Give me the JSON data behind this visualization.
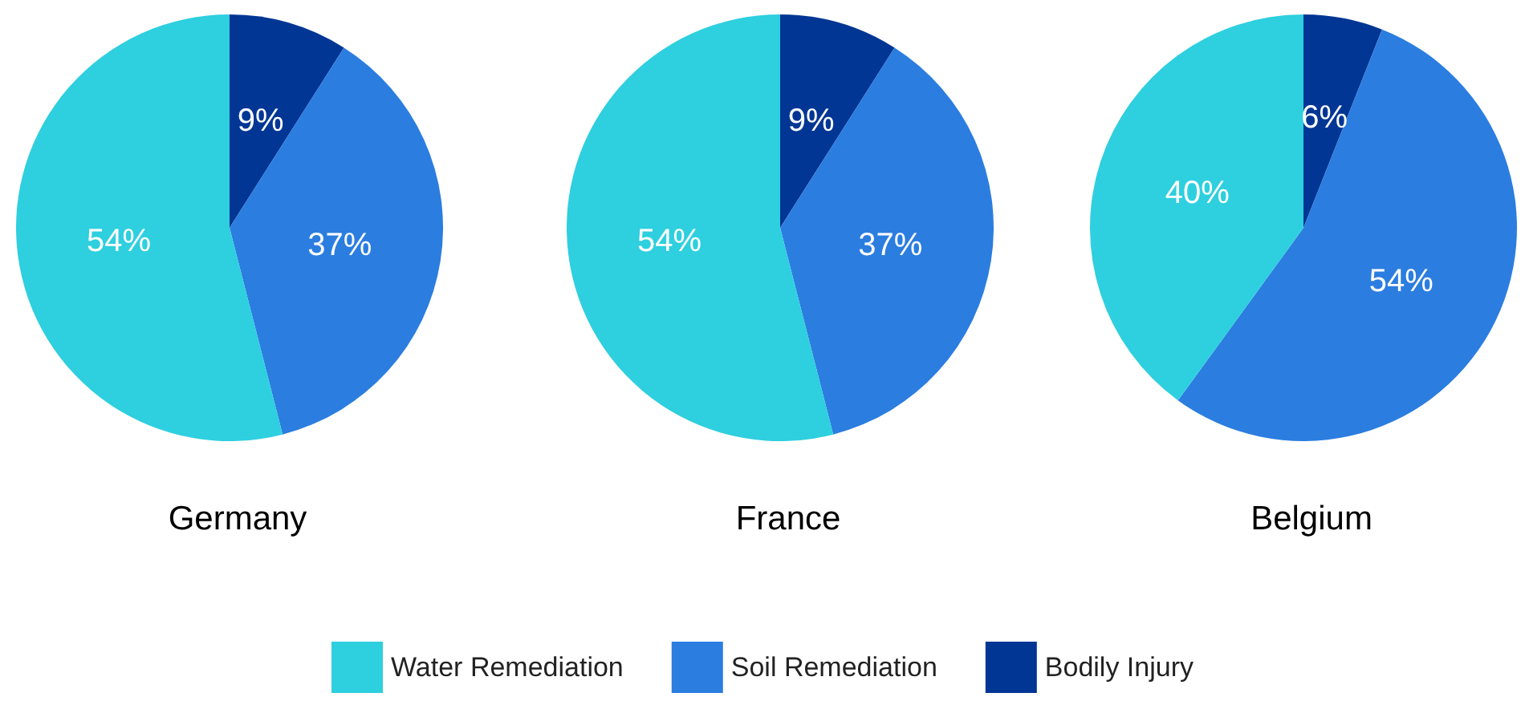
{
  "chart_data": [
    {
      "type": "pie",
      "title": "Germany",
      "categories": [
        "Bodily Injury",
        "Soil Remediation",
        "Water Remediation"
      ],
      "values": [
        9,
        37,
        54
      ],
      "colors": [
        "#023694",
        "#2b7de0",
        "#2ecfdf"
      ],
      "value_labels": [
        "9%",
        "37%",
        "54%"
      ],
      "legend": "bottom"
    },
    {
      "type": "pie",
      "title": "France",
      "categories": [
        null,
        null,
        null
      ],
      "values": [
        9,
        37,
        54
      ],
      "colors": [
        "#023694",
        "#2b7de0",
        "#2ecfdf"
      ],
      "value_labels": [
        "9%",
        "37%",
        "54%"
      ]
    },
    {
      "type": "pie",
      "title": "Belgium",
      "categories": [
        null,
        null,
        null
      ],
      "values": [
        6,
        54,
        40
      ],
      "colors": [
        "#023694",
        "#2b7de0",
        "#2ecfdf"
      ],
      "value_labels": [
        "6%",
        "54%",
        "40%"
      ]
    }
  ]
}
